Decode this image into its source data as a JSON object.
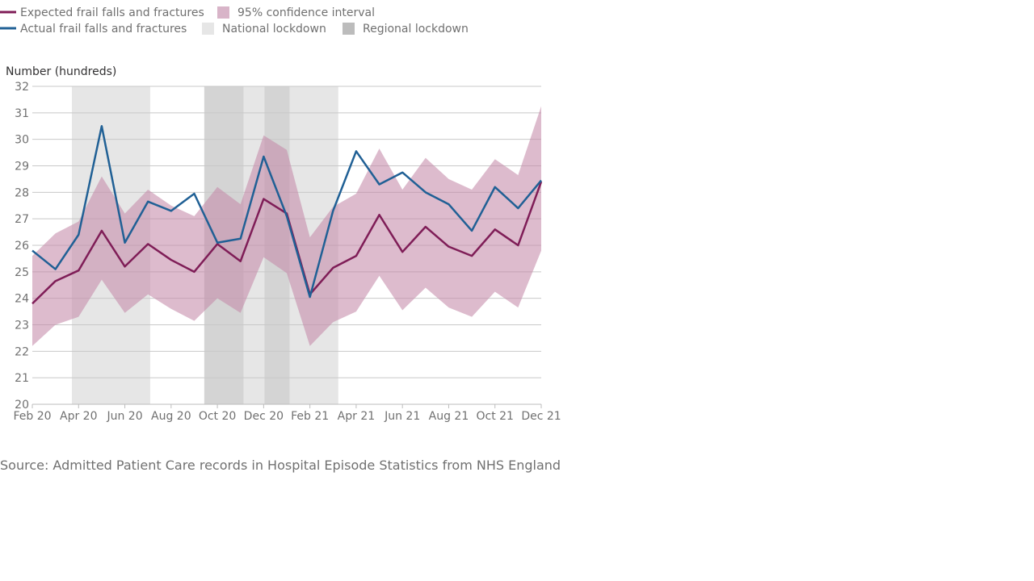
{
  "legend": [
    {
      "label": "Expected frail falls and fractures",
      "kind": "line",
      "color": "#7f1d57"
    },
    {
      "label": "95% confidence interval",
      "kind": "box",
      "color": "#d8b4c8"
    },
    {
      "label": "Actual frail falls and fractures",
      "kind": "line",
      "color": "#206095"
    },
    {
      "label": "National lockdown",
      "kind": "box",
      "color": "#e6e6e6"
    },
    {
      "label": "Regional lockdown",
      "kind": "box",
      "color": "#bcbcbc"
    }
  ],
  "source": "Source: Admitted Patient Care records in Hospital Episode Statistics from NHS England",
  "chart_data": {
    "type": "line",
    "title": "",
    "ylabel": "Number (hundreds)",
    "xlabel": "",
    "ylim": [
      20,
      32
    ],
    "yticks": [
      20,
      21,
      22,
      23,
      24,
      25,
      26,
      27,
      28,
      29,
      30,
      31,
      32
    ],
    "grid": true,
    "legend_position": "top-left",
    "x": [
      "Feb 20",
      "Mar 20",
      "Apr 20",
      "May 20",
      "Jun 20",
      "Jul 20",
      "Aug 20",
      "Sep 20",
      "Oct 20",
      "Nov 20",
      "Dec 20",
      "Jan 21",
      "Feb 21",
      "Mar 21",
      "Apr 21",
      "May 21",
      "Jun 21",
      "Jul 21",
      "Aug 21",
      "Sep 21",
      "Oct 21",
      "Nov 21",
      "Dec 21"
    ],
    "xtick_labels": [
      "Feb 20",
      "Apr 20",
      "Jun 20",
      "Aug 20",
      "Oct 20",
      "Dec 20",
      "Feb 21",
      "Apr 21",
      "Jun 21",
      "Aug 21",
      "Oct 21",
      "Dec 21"
    ],
    "series": [
      {
        "name": "Expected frail falls and fractures",
        "color": "#7f1d57",
        "values": [
          23.8,
          24.65,
          25.05,
          26.55,
          25.2,
          26.05,
          25.45,
          25.0,
          26.05,
          25.4,
          27.75,
          27.2,
          24.15,
          25.15,
          25.6,
          27.15,
          25.75,
          26.7,
          25.95,
          25.6,
          26.6,
          26.0,
          28.4
        ]
      },
      {
        "name": "Actual frail falls and fractures",
        "color": "#206095",
        "values": [
          25.8,
          25.1,
          26.4,
          30.5,
          26.1,
          27.65,
          27.3,
          27.95,
          26.1,
          26.25,
          29.35,
          27.1,
          24.05,
          27.3,
          29.55,
          28.3,
          28.75,
          28.0,
          27.55,
          26.55,
          28.2,
          27.4,
          28.45
        ]
      },
      {
        "name": "95% confidence interval",
        "color": "#d8b4c8",
        "lower": [
          22.2,
          23.0,
          23.3,
          24.7,
          23.45,
          24.15,
          23.6,
          23.15,
          24.0,
          23.45,
          25.55,
          24.95,
          22.2,
          23.1,
          23.5,
          24.85,
          23.55,
          24.4,
          23.65,
          23.3,
          24.25,
          23.65,
          25.8
        ],
        "upper": [
          25.6,
          26.45,
          26.9,
          28.6,
          27.2,
          28.1,
          27.5,
          27.1,
          28.2,
          27.55,
          30.15,
          29.6,
          26.3,
          27.45,
          27.95,
          29.65,
          28.1,
          29.3,
          28.5,
          28.1,
          29.25,
          28.65,
          31.25
        ]
      }
    ],
    "shaded_periods": [
      {
        "type": "National lockdown",
        "start": "2020-03-23",
        "end": "2020-07-04",
        "color": "#e6e6e6"
      },
      {
        "type": "Regional lockdown",
        "start": "2020-09-14",
        "end": "2020-11-05",
        "color": "#d4d4d4"
      },
      {
        "type": "National lockdown",
        "start": "2020-11-05",
        "end": "2020-12-02",
        "color": "#e6e6e6"
      },
      {
        "type": "Regional lockdown",
        "start": "2020-12-02",
        "end": "2021-01-05",
        "color": "#d4d4d4"
      },
      {
        "type": "National lockdown",
        "start": "2021-01-05",
        "end": "2021-03-08",
        "color": "#e6e6e6"
      }
    ]
  }
}
